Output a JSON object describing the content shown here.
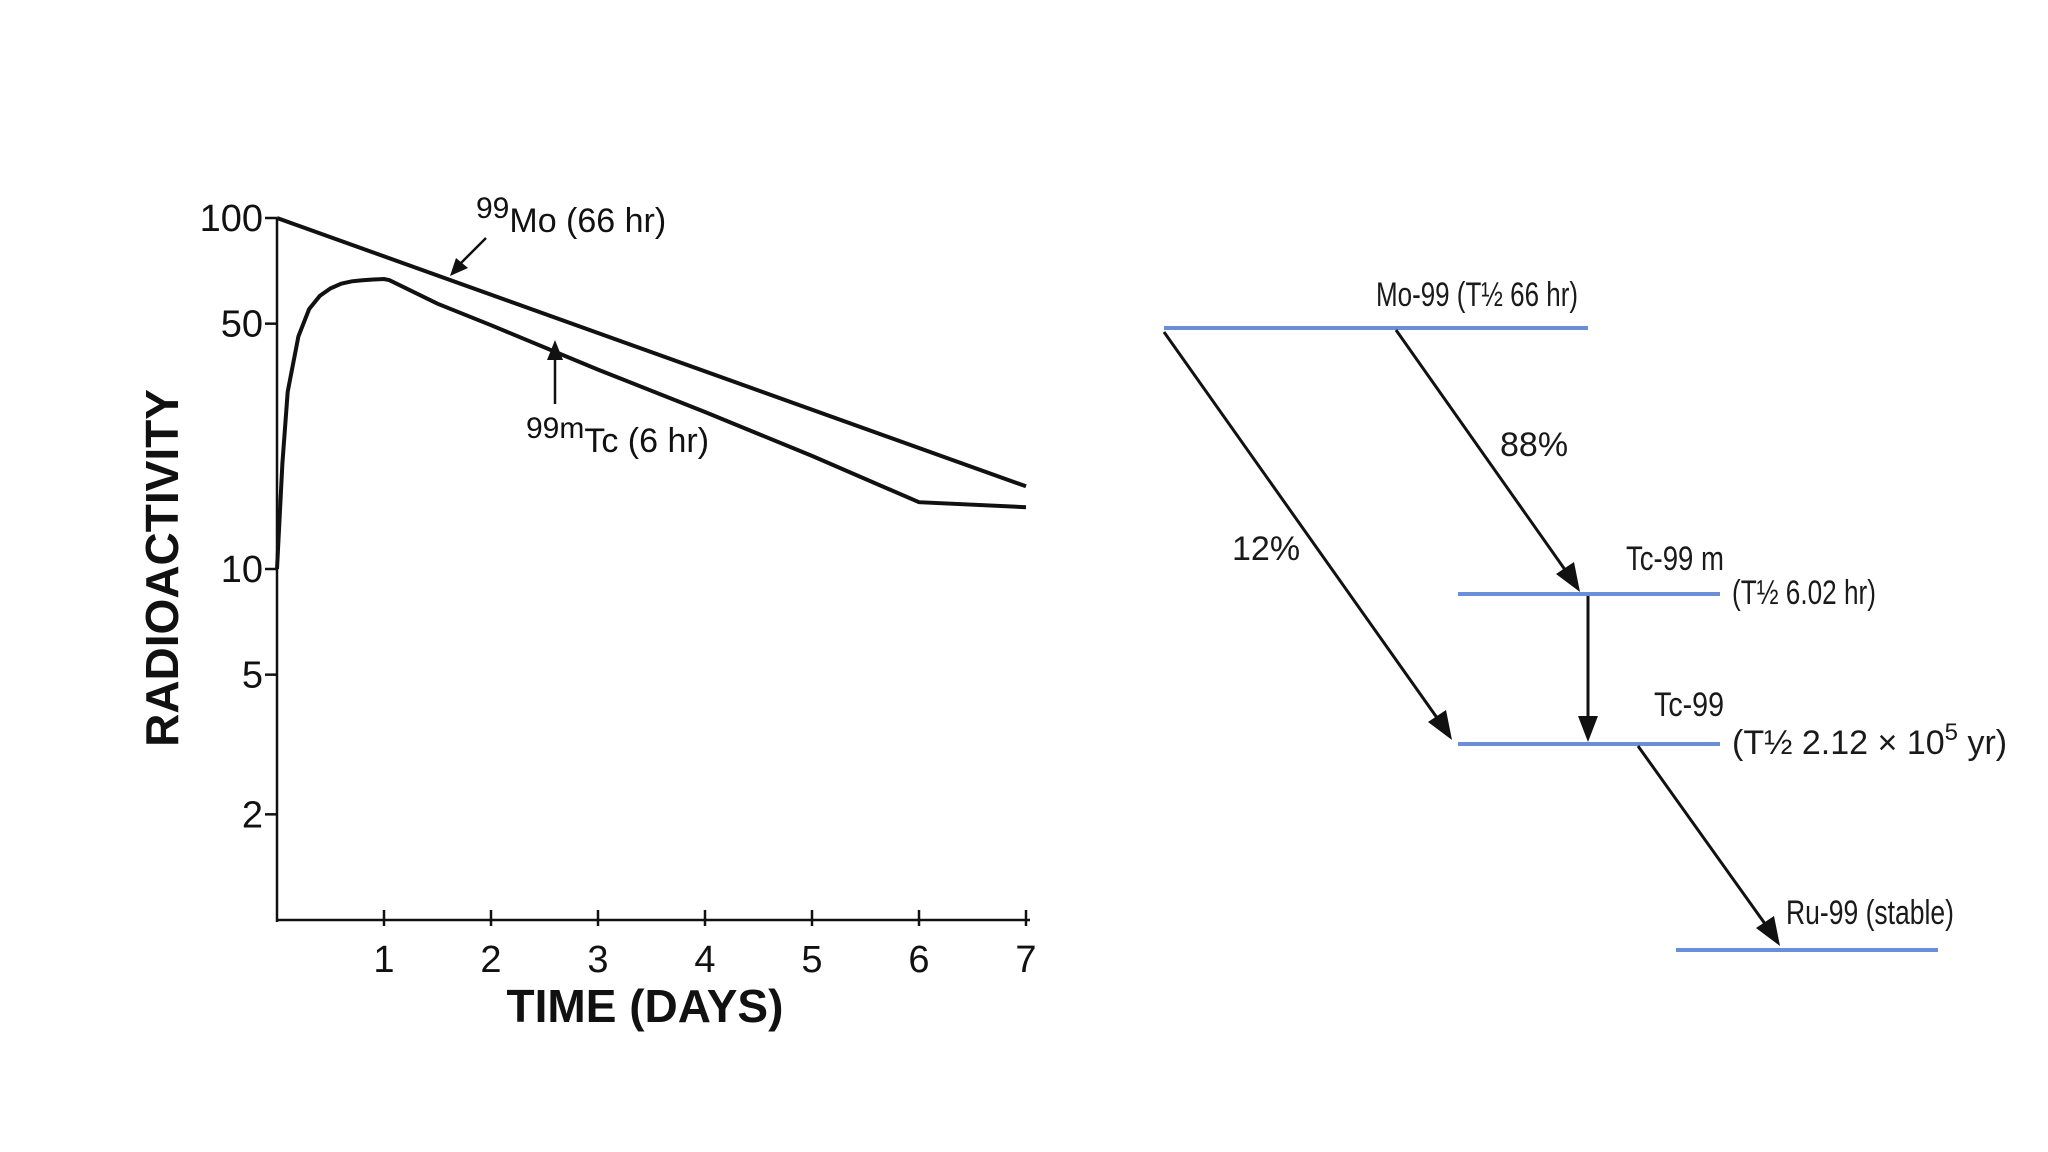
{
  "chart_data": {
    "type": "line",
    "x_label": "TIME (DAYS)",
    "y_label": "RADIOACTIVITY",
    "y_scale": "log",
    "x_ticks": [
      "1",
      "2",
      "3",
      "4",
      "5",
      "6",
      "7"
    ],
    "y_ticks": [
      "100",
      "50",
      "10",
      "5",
      "2"
    ],
    "xlim": [
      0,
      7
    ],
    "ylim": [
      1,
      100
    ],
    "series": [
      {
        "name": "99Mo (66 hr)",
        "label_sup": "99",
        "label_main": "Mo (66 hr)",
        "x": [
          0,
          7
        ],
        "y": [
          100,
          17.2
        ]
      },
      {
        "name": "99mTc (6 hr)",
        "label_sup": "99m",
        "label_main": "Tc (6 hr)",
        "x": [
          0,
          0.05,
          0.1,
          0.2,
          0.3,
          0.4,
          0.5,
          0.6,
          0.7,
          0.8,
          0.9,
          1.0,
          1.05,
          1.5,
          2,
          3,
          4,
          5,
          6,
          7
        ],
        "y": [
          10,
          20,
          32,
          46,
          55,
          60,
          63,
          65,
          66,
          66.5,
          66.8,
          67,
          66.5,
          57,
          49.5,
          37,
          28,
          21,
          15.5,
          15
        ]
      }
    ]
  },
  "diagram": {
    "mo99": "Mo-99 (T½ 66 hr)",
    "tc99m_name": "Tc-99 m",
    "tc99m_halflife": "(T½ 6.02 hr)",
    "tc99_name": "Tc-99",
    "tc99_halflife_prefix": "(T½ 2.12 × 10",
    "tc99_halflife_exp": "5",
    "tc99_halflife_suffix": " yr)",
    "ru99": "Ru-99 (stable)",
    "pct_88": "88%",
    "pct_12": "12%"
  },
  "colors": {
    "level_line": "#6a8fd8",
    "ink": "#111111"
  }
}
